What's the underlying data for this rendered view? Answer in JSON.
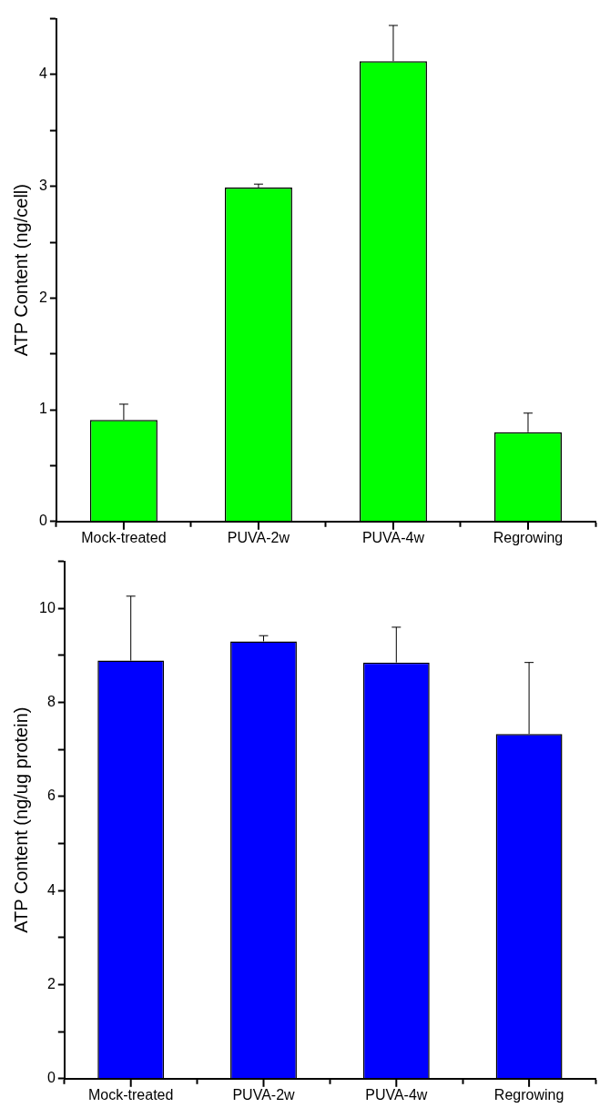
{
  "chart_data": [
    {
      "type": "bar",
      "ylabel": "ATP Content (ng/cell)",
      "categories": [
        "Mock-treated",
        "PUVA-2w",
        "PUVA-4w",
        "Regrowing"
      ],
      "values": [
        0.91,
        2.99,
        4.12,
        0.8
      ],
      "color": "#00ff00",
      "errors": [
        [
          0.91,
          1.05
        ],
        [
          2.99,
          3.02
        ],
        [
          4.12,
          4.44
        ],
        [
          0.8,
          0.97
        ]
      ],
      "ylim": [
        0,
        4.5
      ],
      "yticks": [
        0,
        {
          "value": 0.5,
          "label": null
        },
        1,
        {
          "value": 1.5,
          "label": null
        },
        2,
        {
          "value": 2.5,
          "label": null
        },
        3,
        {
          "value": 3.5,
          "label": null
        },
        4,
        {
          "value": 4.5,
          "label": null
        }
      ],
      "grid": false,
      "legend": false
    },
    {
      "type": "bar",
      "ylabel": "ATP Content (ng/ug protein)",
      "categories": [
        "Mock-treated",
        "PUVA-2w",
        "PUVA-4w",
        "Regrowing"
      ],
      "values": [
        8.89,
        9.3,
        8.85,
        7.33
      ],
      "color": "#0000ff",
      "errors": [
        [
          8.89,
          10.26
        ],
        [
          9.3,
          9.42
        ],
        [
          8.85,
          9.6
        ],
        [
          7.33,
          8.85
        ]
      ],
      "ylim": [
        0,
        11
      ],
      "yticks": [
        0,
        {
          "value": 1,
          "label": null
        },
        2,
        {
          "value": 3,
          "label": null
        },
        4,
        {
          "value": 5,
          "label": null
        },
        6,
        {
          "value": 7,
          "label": null
        },
        8,
        {
          "value": 9,
          "label": null
        },
        10,
        {
          "value": 11,
          "label": null
        }
      ],
      "grid": false,
      "legend": false
    }
  ]
}
